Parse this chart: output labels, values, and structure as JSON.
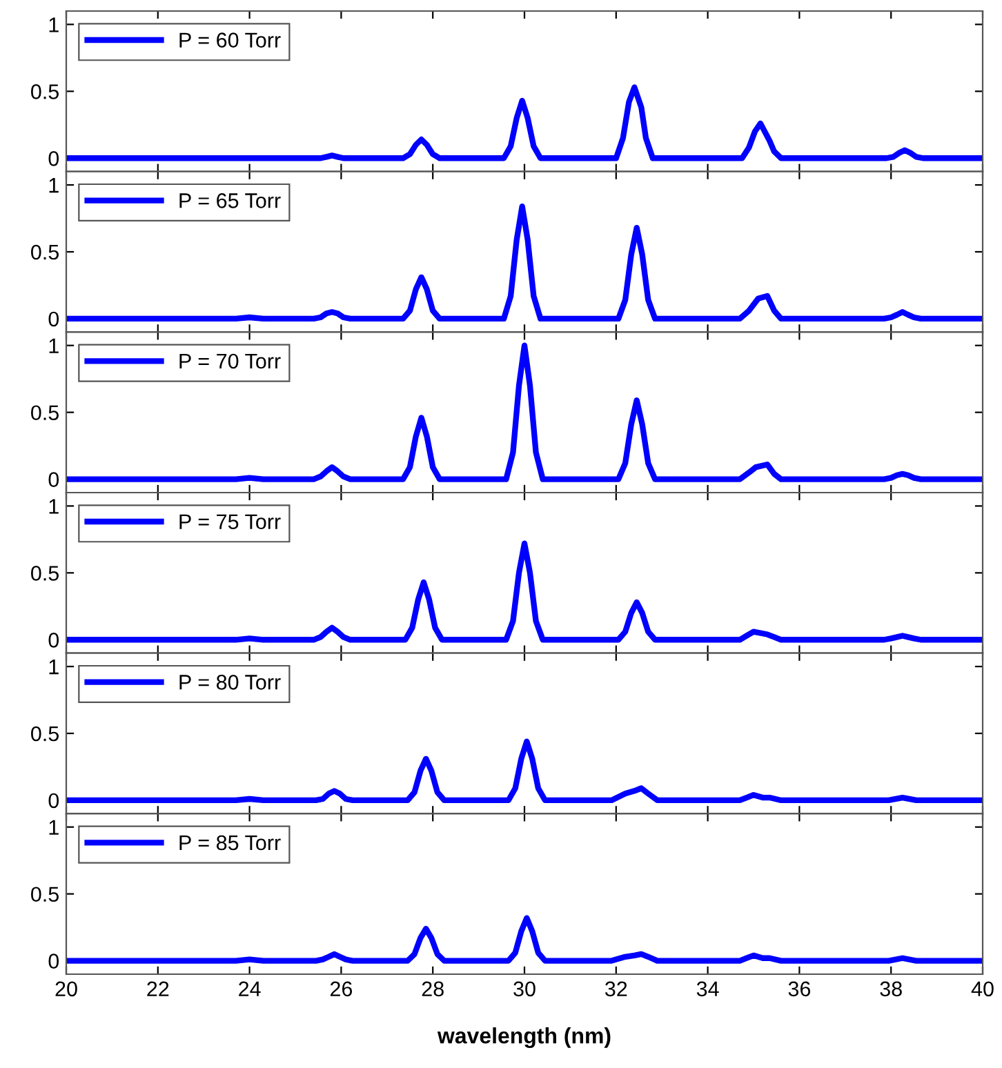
{
  "chart_data": [
    {
      "type": "line",
      "xlim": [
        20,
        40
      ],
      "ylim": [
        -0.1,
        1.1
      ],
      "xticks": [
        20,
        22,
        24,
        26,
        28,
        30,
        32,
        34,
        36,
        38,
        40
      ],
      "yticks": [
        0,
        0.5,
        1
      ],
      "tick_labels": "y",
      "legend": "top left",
      "grid": false,
      "series": [
        {
          "name": "P = 60 Torr",
          "color": "#0000ff",
          "x": [
            20,
            25.4,
            25.55,
            25.68,
            25.8,
            25.92,
            26.05,
            26.2,
            27.35,
            27.5,
            27.63,
            27.75,
            27.87,
            28.0,
            28.15,
            29.55,
            29.7,
            29.83,
            29.95,
            30.07,
            30.2,
            30.35,
            32.0,
            32.15,
            32.28,
            32.4,
            32.55,
            32.65,
            32.8,
            34.75,
            34.9,
            35.03,
            35.15,
            35.35,
            35.45,
            35.6,
            37.9,
            38.05,
            38.18,
            38.3,
            38.42,
            38.55,
            38.7,
            40
          ],
          "values": [
            0,
            0,
            0,
            0.01,
            0.02,
            0.01,
            0,
            0,
            0,
            0.03,
            0.1,
            0.14,
            0.1,
            0.03,
            0,
            0,
            0.09,
            0.3,
            0.43,
            0.3,
            0.09,
            0,
            0,
            0.15,
            0.42,
            0.53,
            0.38,
            0.15,
            0,
            0,
            0.08,
            0.2,
            0.26,
            0.13,
            0.05,
            0,
            0,
            0.01,
            0.04,
            0.06,
            0.04,
            0.01,
            0,
            0
          ]
        }
      ]
    },
    {
      "type": "line",
      "xlim": [
        20,
        40
      ],
      "ylim": [
        -0.1,
        1.1
      ],
      "xticks": [
        20,
        22,
        24,
        26,
        28,
        30,
        32,
        34,
        36,
        38,
        40
      ],
      "yticks": [
        0,
        0.5,
        1
      ],
      "tick_labels": "y",
      "legend": "top left",
      "grid": false,
      "series": [
        {
          "name": "P = 65 Torr",
          "color": "#0000ff",
          "x": [
            20,
            23.7,
            24.0,
            24.3,
            25.4,
            25.55,
            25.68,
            25.8,
            25.92,
            26.05,
            26.2,
            27.35,
            27.5,
            27.63,
            27.75,
            27.87,
            28.0,
            28.15,
            29.55,
            29.7,
            29.83,
            29.95,
            30.07,
            30.2,
            30.35,
            32.05,
            32.2,
            32.33,
            32.45,
            32.57,
            32.7,
            32.85,
            34.7,
            34.9,
            35.1,
            35.3,
            35.45,
            35.6,
            37.85,
            38.0,
            38.13,
            38.25,
            38.37,
            38.5,
            38.65,
            40
          ],
          "values": [
            0,
            0,
            0.01,
            0,
            0,
            0.01,
            0.04,
            0.05,
            0.04,
            0.01,
            0,
            0,
            0.06,
            0.22,
            0.31,
            0.22,
            0.06,
            0,
            0,
            0.17,
            0.59,
            0.84,
            0.59,
            0.17,
            0,
            0,
            0.14,
            0.48,
            0.68,
            0.48,
            0.14,
            0,
            0,
            0.06,
            0.15,
            0.17,
            0.06,
            0,
            0,
            0.01,
            0.03,
            0.05,
            0.03,
            0.01,
            0,
            0
          ]
        }
      ]
    },
    {
      "type": "line",
      "xlim": [
        20,
        40
      ],
      "ylim": [
        -0.1,
        1.1
      ],
      "xticks": [
        20,
        22,
        24,
        26,
        28,
        30,
        32,
        34,
        36,
        38,
        40
      ],
      "yticks": [
        0,
        0.5,
        1
      ],
      "tick_labels": "y",
      "legend": "top left",
      "grid": false,
      "series": [
        {
          "name": "P = 70 Torr",
          "color": "#0000ff",
          "x": [
            20,
            23.7,
            24.0,
            24.3,
            25.4,
            25.55,
            25.68,
            25.8,
            25.92,
            26.05,
            26.2,
            27.35,
            27.5,
            27.63,
            27.75,
            27.87,
            28.0,
            28.15,
            29.6,
            29.75,
            29.88,
            30.0,
            30.12,
            30.25,
            30.4,
            32.05,
            32.2,
            32.33,
            32.45,
            32.57,
            32.7,
            32.85,
            34.7,
            34.9,
            35.05,
            35.3,
            35.45,
            35.6,
            37.85,
            38.0,
            38.13,
            38.25,
            38.37,
            38.5,
            38.65,
            40
          ],
          "values": [
            0,
            0,
            0.01,
            0,
            0,
            0.02,
            0.06,
            0.09,
            0.06,
            0.02,
            0,
            0,
            0.09,
            0.32,
            0.46,
            0.32,
            0.09,
            0,
            0,
            0.2,
            0.7,
            1.0,
            0.7,
            0.2,
            0,
            0,
            0.12,
            0.41,
            0.59,
            0.41,
            0.12,
            0,
            0,
            0.05,
            0.09,
            0.11,
            0.04,
            0,
            0,
            0.01,
            0.03,
            0.04,
            0.03,
            0.01,
            0,
            0
          ]
        }
      ]
    },
    {
      "type": "line",
      "xlim": [
        20,
        40
      ],
      "ylim": [
        -0.1,
        1.1
      ],
      "xticks": [
        20,
        22,
        24,
        26,
        28,
        30,
        32,
        34,
        36,
        38,
        40
      ],
      "yticks": [
        0,
        0.5,
        1
      ],
      "tick_labels": "y",
      "legend": "top left",
      "grid": false,
      "series": [
        {
          "name": "P = 75 Torr",
          "color": "#0000ff",
          "x": [
            20,
            23.7,
            24.0,
            24.3,
            25.4,
            25.55,
            25.68,
            25.8,
            25.92,
            26.05,
            26.2,
            27.4,
            27.55,
            27.68,
            27.8,
            27.92,
            28.05,
            28.2,
            29.6,
            29.75,
            29.88,
            30.0,
            30.12,
            30.25,
            30.4,
            32.05,
            32.2,
            32.33,
            32.45,
            32.57,
            32.7,
            32.85,
            34.7,
            34.85,
            35.0,
            35.3,
            35.45,
            35.6,
            37.85,
            38.0,
            38.13,
            38.25,
            38.37,
            38.5,
            38.65,
            40
          ],
          "values": [
            0,
            0,
            0.01,
            0,
            0,
            0.02,
            0.06,
            0.09,
            0.06,
            0.02,
            0,
            0,
            0.09,
            0.3,
            0.43,
            0.3,
            0.09,
            0,
            0,
            0.14,
            0.5,
            0.72,
            0.5,
            0.14,
            0,
            0,
            0.06,
            0.2,
            0.28,
            0.2,
            0.06,
            0,
            0,
            0.03,
            0.06,
            0.04,
            0.02,
            0,
            0,
            0.01,
            0.02,
            0.03,
            0.02,
            0.01,
            0,
            0
          ]
        }
      ]
    },
    {
      "type": "line",
      "xlim": [
        20,
        40
      ],
      "ylim": [
        -0.1,
        1.1
      ],
      "xticks": [
        20,
        22,
        24,
        26,
        28,
        30,
        32,
        34,
        36,
        38,
        40
      ],
      "yticks": [
        0,
        0.5,
        1
      ],
      "tick_labels": "y",
      "legend": "top left",
      "grid": false,
      "series": [
        {
          "name": "P = 80 Torr",
          "color": "#0000ff",
          "x": [
            20,
            23.7,
            24.0,
            24.3,
            25.45,
            25.6,
            25.73,
            25.85,
            25.97,
            26.1,
            26.25,
            27.45,
            27.6,
            27.73,
            27.85,
            27.97,
            28.1,
            28.25,
            29.65,
            29.8,
            29.93,
            30.05,
            30.17,
            30.3,
            30.45,
            31.9,
            32.2,
            32.4,
            32.55,
            32.7,
            32.9,
            34.7,
            34.85,
            35.0,
            35.2,
            35.35,
            35.6,
            37.95,
            38.25,
            38.55,
            40
          ],
          "values": [
            0,
            0,
            0.01,
            0,
            0,
            0.01,
            0.05,
            0.07,
            0.05,
            0.01,
            0,
            0,
            0.06,
            0.22,
            0.31,
            0.22,
            0.06,
            0,
            0,
            0.09,
            0.31,
            0.44,
            0.31,
            0.09,
            0,
            0,
            0.05,
            0.07,
            0.09,
            0.05,
            0,
            0,
            0.02,
            0.04,
            0.02,
            0.02,
            0,
            0,
            0.02,
            0,
            0
          ]
        }
      ]
    },
    {
      "type": "line",
      "xlim": [
        20,
        40
      ],
      "ylim": [
        -0.1,
        1.1
      ],
      "xticks": [
        20,
        22,
        24,
        26,
        28,
        30,
        32,
        34,
        36,
        38,
        40
      ],
      "yticks": [
        0,
        0.5,
        1
      ],
      "xlabel": "wavelength (nm)",
      "legend": "top left",
      "grid": false,
      "series": [
        {
          "name": "P = 85 Torr",
          "color": "#0000ff",
          "x": [
            20,
            23.7,
            24.0,
            24.3,
            25.45,
            25.6,
            25.73,
            25.85,
            25.97,
            26.1,
            26.25,
            27.45,
            27.6,
            27.73,
            27.85,
            27.97,
            28.1,
            28.25,
            29.65,
            29.8,
            29.93,
            30.05,
            30.17,
            30.3,
            30.45,
            31.9,
            32.2,
            32.4,
            32.55,
            32.7,
            32.9,
            34.7,
            34.85,
            35.0,
            35.2,
            35.35,
            35.6,
            37.95,
            38.25,
            38.55,
            40
          ],
          "values": [
            0,
            0,
            0.01,
            0,
            0,
            0.01,
            0.03,
            0.05,
            0.03,
            0.01,
            0,
            0,
            0.05,
            0.17,
            0.24,
            0.17,
            0.05,
            0,
            0,
            0.06,
            0.22,
            0.32,
            0.22,
            0.06,
            0,
            0,
            0.03,
            0.04,
            0.05,
            0.03,
            0,
            0,
            0.02,
            0.04,
            0.02,
            0.02,
            0,
            0,
            0.02,
            0,
            0
          ]
        }
      ]
    }
  ]
}
